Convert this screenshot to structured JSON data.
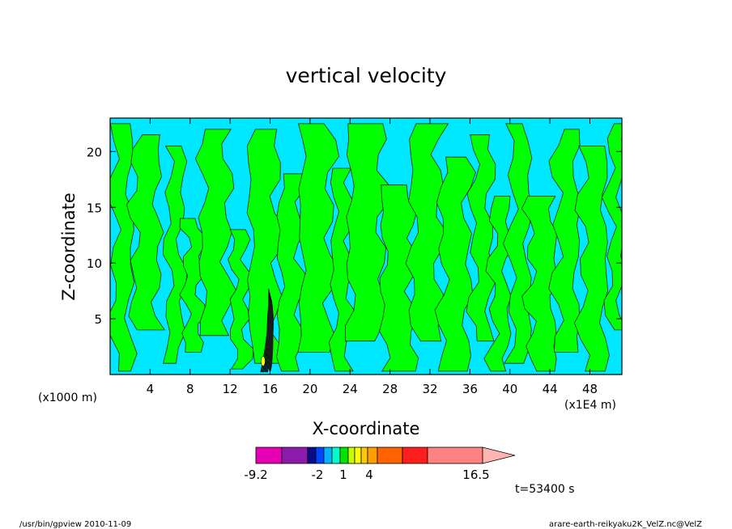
{
  "chart_data": {
    "type": "heatmap",
    "title": "vertical velocity",
    "xlabel": "X-coordinate",
    "ylabel": "Z-coordinate",
    "x_unit_left": "(x1000 m)",
    "x_unit_right": "(x1E4 m)",
    "xlim": [
      0,
      51.2
    ],
    "ylim": [
      0,
      23
    ],
    "xticks": [
      4,
      8,
      12,
      16,
      20,
      24,
      28,
      32,
      36,
      40,
      44,
      48
    ],
    "yticks": [
      5,
      10,
      15,
      20
    ],
    "time_label": "t=53400 s",
    "colorbar": {
      "colors": [
        "#e600b4",
        "#8c1aaa",
        "#0a0a8c",
        "#0046ff",
        "#00b4ff",
        "#00ffc8",
        "#00e600",
        "#c8ff00",
        "#ffff00",
        "#ffc800",
        "#ffa000",
        "#ff6400",
        "#ff1e1e",
        "#ff8282"
      ],
      "extend_color": "#ffb4b4",
      "labels": [
        "-9.2",
        "-2",
        "1",
        "4",
        "16.5"
      ],
      "background_colors": {
        "negative": "#00e8ff",
        "positive": "#00ff00"
      }
    },
    "green_bands": [
      {
        "x": 1.2,
        "z0": 0.3,
        "z1": 22.5,
        "w": 1.0
      },
      {
        "x": 3.6,
        "z0": 4.0,
        "z1": 21.5,
        "w": 1.4
      },
      {
        "x": 6.5,
        "z0": 1.0,
        "z1": 20.5,
        "w": 0.8
      },
      {
        "x": 8.3,
        "z0": 2.0,
        "z1": 14.0,
        "w": 0.9
      },
      {
        "x": 10.5,
        "z0": 3.5,
        "z1": 22.0,
        "w": 1.5
      },
      {
        "x": 13.0,
        "z0": 0.5,
        "z1": 13.0,
        "w": 0.8
      },
      {
        "x": 15.4,
        "z0": 1.0,
        "z1": 22.0,
        "w": 1.6
      },
      {
        "x": 18.0,
        "z0": 0.3,
        "z1": 18.0,
        "w": 1.2
      },
      {
        "x": 20.6,
        "z0": 2.0,
        "z1": 22.5,
        "w": 1.7
      },
      {
        "x": 23.2,
        "z0": 0.3,
        "z1": 18.5,
        "w": 1.0
      },
      {
        "x": 25.6,
        "z0": 3.0,
        "z1": 22.5,
        "w": 1.9
      },
      {
        "x": 28.8,
        "z0": 0.3,
        "z1": 17.0,
        "w": 1.7
      },
      {
        "x": 31.6,
        "z0": 3.0,
        "z1": 22.5,
        "w": 1.6
      },
      {
        "x": 34.5,
        "z0": 0.3,
        "z1": 19.5,
        "w": 1.5
      },
      {
        "x": 37.2,
        "z0": 3.0,
        "z1": 21.5,
        "w": 1.0
      },
      {
        "x": 39.0,
        "z0": 0.3,
        "z1": 16.0,
        "w": 0.9
      },
      {
        "x": 41.0,
        "z0": 1.0,
        "z1": 22.5,
        "w": 1.0
      },
      {
        "x": 43.2,
        "z0": 0.3,
        "z1": 16.0,
        "w": 1.4
      },
      {
        "x": 45.7,
        "z0": 2.0,
        "z1": 22.0,
        "w": 1.2
      },
      {
        "x": 48.4,
        "z0": 0.3,
        "z1": 20.5,
        "w": 1.3
      },
      {
        "x": 50.6,
        "z0": 4.0,
        "z1": 22.5,
        "w": 0.7
      }
    ],
    "plume": {
      "x": 16.0,
      "z_top": 7.7,
      "w": 0.8
    }
  },
  "footer": {
    "left": "/usr/bin/gpview   2010-11-09",
    "right": "arare-earth-reikyaku2K_VelZ.nc@VelZ"
  }
}
